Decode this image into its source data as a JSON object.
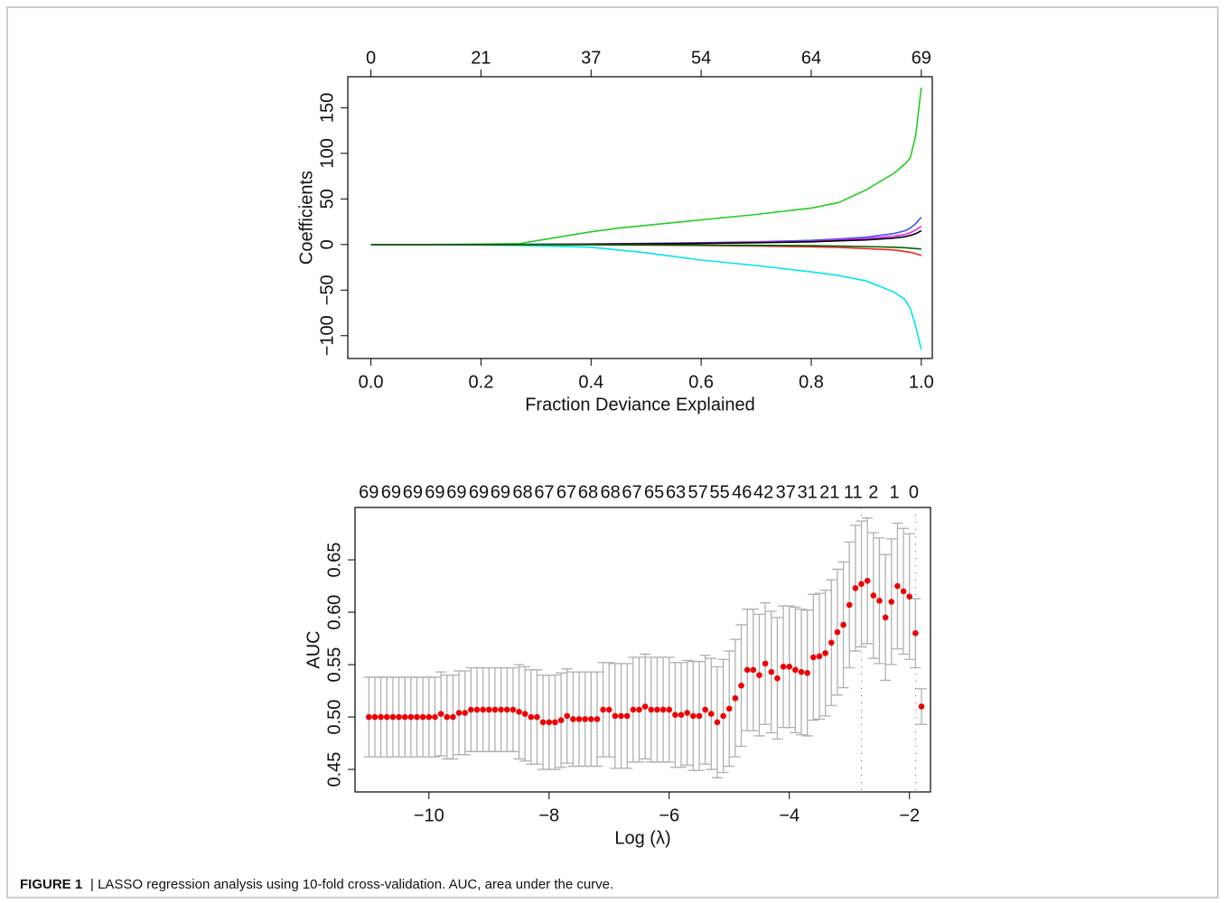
{
  "chart_data": [
    {
      "type": "line",
      "xlabel": "Fraction Deviance Explained",
      "ylabel": "Coefficients",
      "xlim": [
        -0.042,
        1.02
      ],
      "ylim": [
        -125,
        184
      ],
      "xticks": [
        {
          "value": 0,
          "label": "0.0"
        },
        {
          "value": 0.2,
          "label": "0.2"
        },
        {
          "value": 0.4,
          "label": "0.4"
        },
        {
          "value": 0.6,
          "label": "0.6"
        },
        {
          "value": 0.8,
          "label": "0.8"
        },
        {
          "value": 1,
          "label": "1.0"
        }
      ],
      "top_ticks": [
        0,
        {
          "value": 0.2,
          "label": "21"
        },
        {
          "value": 0.4,
          "label": "37"
        },
        {
          "value": 0.6,
          "label": "54"
        },
        {
          "value": 0.8,
          "label": "64"
        },
        {
          "value": 1,
          "label": "69"
        }
      ],
      "yticks": [
        {
          "value": -100,
          "label": "−100"
        },
        {
          "value": -50,
          "label": "−50"
        },
        0,
        50,
        100,
        150
      ],
      "x": [
        0,
        0.1,
        0.2,
        0.27,
        0.3,
        0.35,
        0.4,
        0.45,
        0.5,
        0.6,
        0.7,
        0.8,
        0.85,
        0.9,
        0.95,
        0.97,
        0.98,
        0.99,
        1.0
      ],
      "series": [
        {
          "color": "#22cc22",
          "values": [
            0,
            0,
            0.5,
            1,
            4,
            9,
            14,
            18,
            21,
            27,
            33,
            40,
            46,
            60,
            78,
            88,
            95,
            120,
            172
          ]
        },
        {
          "color": "#00e5ee",
          "values": [
            0,
            0,
            -0.5,
            -1,
            -1.5,
            -2,
            -3,
            -6,
            -9,
            -17,
            -23,
            -30,
            -34,
            -40,
            -52,
            -60,
            -70,
            -90,
            -115
          ]
        },
        {
          "color": "#3355ff",
          "values": [
            0,
            0,
            0,
            0,
            0.2,
            0.4,
            0.6,
            0.9,
            1.2,
            2,
            3,
            4.5,
            6,
            8,
            12,
            15,
            18,
            23,
            30
          ]
        },
        {
          "color": "#ee22ee",
          "values": [
            0,
            0,
            0,
            0,
            0.1,
            0.3,
            0.5,
            0.7,
            1,
            1.5,
            2.5,
            3.5,
            5,
            6.5,
            9,
            11,
            13,
            16,
            20
          ]
        },
        {
          "color": "#000000",
          "values": [
            0,
            0,
            0,
            0,
            0.1,
            0.2,
            0.4,
            0.6,
            0.8,
            1.2,
            2,
            3,
            4,
            5,
            7,
            8.5,
            10,
            12,
            15
          ]
        },
        {
          "color": "#ee2222",
          "values": [
            0,
            0,
            0,
            0,
            -0.1,
            -0.2,
            -0.3,
            -0.5,
            -0.7,
            -1,
            -1.6,
            -2.5,
            -3.2,
            -4.5,
            -6,
            -7.5,
            -8.5,
            -10,
            -12
          ]
        },
        {
          "color": "#006400",
          "values": [
            0,
            0,
            0,
            0,
            0,
            -0.1,
            -0.2,
            -0.3,
            -0.4,
            -0.6,
            -0.9,
            -1.3,
            -1.7,
            -2.2,
            -3,
            -3.5,
            -4,
            -4.5,
            -5
          ]
        }
      ]
    },
    {
      "type": "errorbar",
      "xlabel": "Log (λ)",
      "ylabel": "AUC",
      "xlim": [
        -11.23,
        -1.65
      ],
      "ylim": [
        0.4285,
        0.7
      ],
      "xticks": [
        {
          "value": -10,
          "label": "−10"
        },
        {
          "value": -8,
          "label": "−8"
        },
        {
          "value": -6,
          "label": "−6"
        },
        {
          "value": -4,
          "label": "−4"
        },
        {
          "value": -2,
          "label": "−2"
        }
      ],
      "yticks": [
        0.45,
        {
          "value": 0.5,
          "label": "0.50"
        },
        0.55,
        {
          "value": 0.6,
          "label": "0.60"
        },
        0.65
      ],
      "top_ticks": [
        {
          "value": -11.0,
          "label": "69"
        },
        {
          "value": -10.63,
          "label": "69"
        },
        {
          "value": -10.27,
          "label": "69"
        },
        {
          "value": -9.9,
          "label": "69"
        },
        {
          "value": -9.54,
          "label": "69"
        },
        {
          "value": -9.17,
          "label": "69"
        },
        {
          "value": -8.81,
          "label": "69"
        },
        {
          "value": -8.44,
          "label": "68"
        },
        {
          "value": -8.08,
          "label": "67"
        },
        {
          "value": -7.71,
          "label": "67"
        },
        {
          "value": -7.35,
          "label": "68"
        },
        {
          "value": -6.98,
          "label": "68"
        },
        {
          "value": -6.62,
          "label": "67"
        },
        {
          "value": -6.25,
          "label": "65"
        },
        {
          "value": -5.89,
          "label": "63"
        },
        {
          "value": -5.52,
          "label": "57"
        },
        {
          "value": -5.16,
          "label": "55"
        },
        {
          "value": -4.79,
          "label": "46"
        },
        {
          "value": -4.43,
          "label": "42"
        },
        {
          "value": -4.06,
          "label": "37"
        },
        {
          "value": -3.7,
          "label": "31"
        },
        {
          "value": -3.33,
          "label": "21"
        },
        {
          "value": -2.94,
          "label": "11"
        },
        {
          "value": -2.6,
          "label": "2"
        },
        {
          "value": -2.25,
          "label": "1"
        },
        {
          "value": -1.93,
          "label": "0"
        }
      ],
      "vlines": [
        -2.8,
        -1.9
      ],
      "color": "#ee0000",
      "error_color": "#b0b0b0",
      "x": [
        -11.0,
        -10.9,
        -10.8,
        -10.7,
        -10.6,
        -10.5,
        -10.4,
        -10.3,
        -10.2,
        -10.1,
        -10.0,
        -9.9,
        -9.8,
        -9.7,
        -9.6,
        -9.5,
        -9.4,
        -9.3,
        -9.2,
        -9.1,
        -9.0,
        -8.9,
        -8.8,
        -8.7,
        -8.6,
        -8.5,
        -8.4,
        -8.3,
        -8.2,
        -8.1,
        -8.0,
        -7.9,
        -7.8,
        -7.7,
        -7.6,
        -7.5,
        -7.4,
        -7.3,
        -7.2,
        -7.1,
        -7.0,
        -6.9,
        -6.8,
        -6.7,
        -6.6,
        -6.5,
        -6.4,
        -6.3,
        -6.2,
        -6.1,
        -6.0,
        -5.9,
        -5.8,
        -5.7,
        -5.6,
        -5.5,
        -5.4,
        -5.3,
        -5.2,
        -5.1,
        -5.0,
        -4.9,
        -4.8,
        -4.7,
        -4.6,
        -4.5,
        -4.4,
        -4.3,
        -4.2,
        -4.1,
        -4.0,
        -3.9,
        -3.8,
        -3.7,
        -3.6,
        -3.5,
        -3.4,
        -3.3,
        -3.2,
        -3.1,
        -3.0,
        -2.9,
        -2.8,
        -2.7,
        -2.6,
        -2.5,
        -2.4,
        -2.3,
        -2.2,
        -2.1,
        -2.0,
        -1.9,
        -1.8
      ],
      "values": [
        0.5,
        0.5,
        0.5,
        0.5,
        0.5,
        0.5,
        0.5,
        0.5,
        0.5,
        0.5,
        0.5,
        0.5,
        0.503,
        0.5,
        0.5,
        0.504,
        0.504,
        0.507,
        0.507,
        0.507,
        0.507,
        0.507,
        0.507,
        0.507,
        0.507,
        0.505,
        0.503,
        0.5,
        0.5,
        0.495,
        0.495,
        0.495,
        0.497,
        0.501,
        0.498,
        0.498,
        0.498,
        0.498,
        0.498,
        0.507,
        0.507,
        0.501,
        0.501,
        0.501,
        0.507,
        0.507,
        0.51,
        0.507,
        0.507,
        0.507,
        0.507,
        0.502,
        0.502,
        0.504,
        0.501,
        0.501,
        0.507,
        0.503,
        0.495,
        0.501,
        0.508,
        0.518,
        0.53,
        0.545,
        0.545,
        0.54,
        0.551,
        0.543,
        0.537,
        0.548,
        0.548,
        0.545,
        0.543,
        0.542,
        0.557,
        0.558,
        0.561,
        0.571,
        0.581,
        0.588,
        0.607,
        0.623,
        0.627,
        0.63,
        0.616,
        0.611,
        0.595,
        0.61,
        0.625,
        0.62,
        0.615,
        0.58,
        0.51
      ],
      "errors": [
        0.038,
        0.038,
        0.038,
        0.038,
        0.038,
        0.038,
        0.038,
        0.038,
        0.038,
        0.038,
        0.038,
        0.038,
        0.04,
        0.04,
        0.04,
        0.04,
        0.04,
        0.04,
        0.04,
        0.04,
        0.04,
        0.04,
        0.04,
        0.04,
        0.04,
        0.045,
        0.045,
        0.045,
        0.045,
        0.045,
        0.045,
        0.045,
        0.045,
        0.045,
        0.045,
        0.045,
        0.045,
        0.045,
        0.045,
        0.045,
        0.045,
        0.05,
        0.05,
        0.05,
        0.05,
        0.05,
        0.05,
        0.05,
        0.05,
        0.05,
        0.05,
        0.05,
        0.05,
        0.05,
        0.052,
        0.052,
        0.052,
        0.053,
        0.053,
        0.054,
        0.055,
        0.056,
        0.058,
        0.058,
        0.058,
        0.058,
        0.058,
        0.058,
        0.058,
        0.058,
        0.058,
        0.06,
        0.06,
        0.06,
        0.06,
        0.06,
        0.06,
        0.06,
        0.06,
        0.06,
        0.06,
        0.06,
        0.06,
        0.06,
        0.06,
        0.06,
        0.06,
        0.06,
        0.06,
        0.06,
        0.06,
        0.033,
        0.017
      ]
    }
  ],
  "caption_label": "FIGURE 1",
  "caption_text": "| LASSO regression analysis using 10-fold cross-validation. AUC, area under the curve."
}
